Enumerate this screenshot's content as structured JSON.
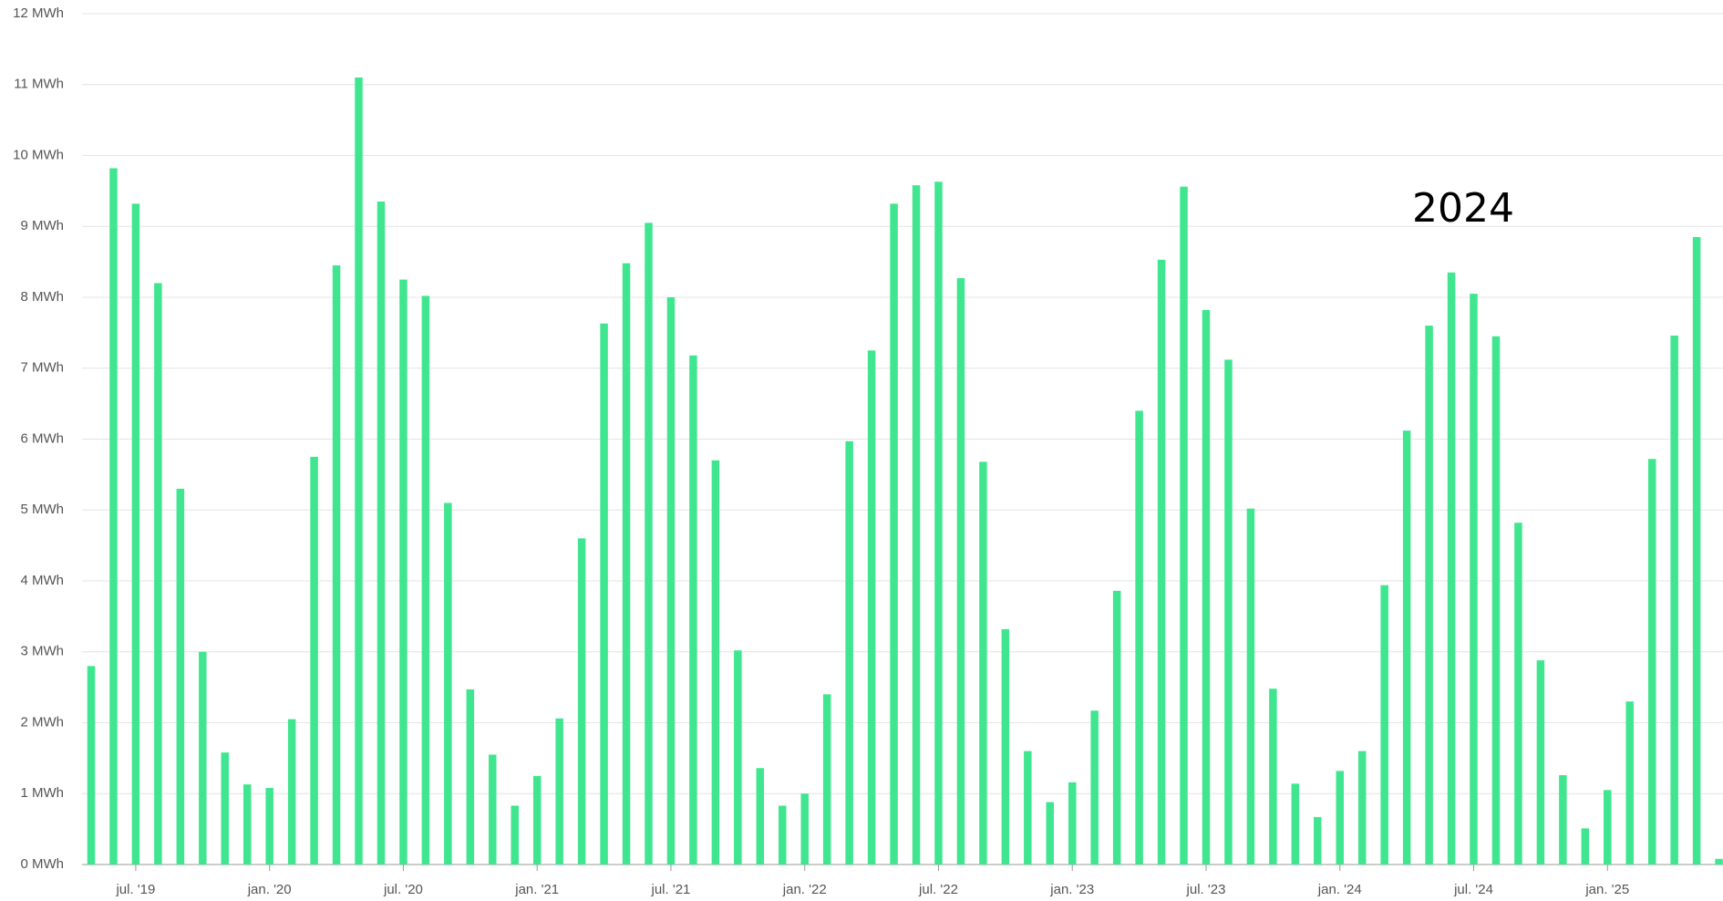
{
  "chart_data": {
    "type": "bar",
    "annotation": "2024",
    "color": "#40e68f",
    "grid": true,
    "categories": [
      null,
      null,
      "jul. '19",
      null,
      null,
      null,
      null,
      null,
      "jan. '20",
      null,
      null,
      null,
      null,
      null,
      "jul. '20",
      null,
      null,
      null,
      null,
      null,
      "jan. '21",
      null,
      null,
      null,
      null,
      null,
      "jul. '21",
      null,
      null,
      null,
      null,
      null,
      "jan. '22",
      null,
      null,
      null,
      null,
      null,
      "jul. '22",
      null,
      null,
      null,
      null,
      null,
      "jan. '23",
      null,
      null,
      null,
      null,
      null,
      "jul. '23",
      null,
      null,
      null,
      null,
      null,
      "jan. '24",
      null,
      null,
      null,
      null,
      null,
      "jul. '24",
      null,
      null,
      null,
      null,
      null,
      "jan. '25",
      null,
      null,
      null,
      null,
      null
    ],
    "values": [
      2.8,
      9.82,
      9.32,
      8.2,
      5.3,
      3.0,
      1.58,
      1.13,
      1.08,
      2.05,
      5.75,
      8.45,
      11.1,
      9.35,
      8.25,
      8.02,
      5.1,
      2.47,
      1.55,
      0.83,
      1.25,
      2.06,
      4.6,
      7.63,
      8.48,
      9.05,
      8.0,
      7.18,
      5.7,
      3.02,
      1.36,
      0.83,
      1.0,
      2.4,
      5.97,
      7.25,
      9.32,
      9.58,
      9.63,
      8.27,
      5.68,
      3.32,
      1.6,
      0.88,
      1.16,
      2.17,
      3.86,
      6.4,
      8.53,
      9.56,
      7.82,
      7.12,
      5.02,
      2.48,
      1.14,
      0.67,
      1.32,
      1.6,
      3.94,
      6.12,
      7.6,
      8.35,
      8.05,
      7.45,
      4.82,
      2.88,
      1.26,
      0.51,
      1.05,
      2.3,
      5.72,
      7.46,
      8.85,
      0.08
    ],
    "ylim": [
      0,
      12
    ],
    "yticks": [
      {
        "value": 0,
        "label": "0 MWh"
      },
      {
        "value": 1,
        "label": "1 MWh"
      },
      {
        "value": 2,
        "label": "2 MWh"
      },
      {
        "value": 3,
        "label": "3 MWh"
      },
      {
        "value": 4,
        "label": "4 MWh"
      },
      {
        "value": 5,
        "label": "5 MWh"
      },
      {
        "value": 6,
        "label": "6 MWh"
      },
      {
        "value": 7,
        "label": "7 MWh"
      },
      {
        "value": 8,
        "label": "8 MWh"
      },
      {
        "value": 9,
        "label": "9 MWh"
      },
      {
        "value": 10,
        "label": "10 MWh"
      },
      {
        "value": 11,
        "label": "11 MWh"
      },
      {
        "value": 12,
        "label": "12 MWh"
      }
    ]
  }
}
